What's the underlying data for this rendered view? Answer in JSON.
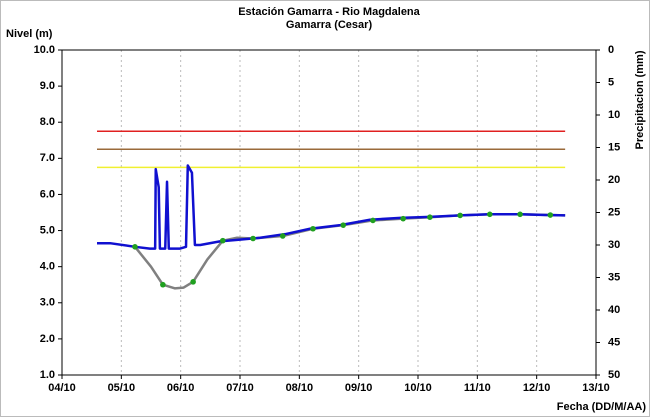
{
  "chart_data": {
    "type": "line",
    "title": "Estación Gamarra - Rio Magdalena",
    "subtitle": "Gamarra (Cesar)",
    "y_label": "Nivel (m)",
    "y2_label": "Precipitacion (mm)",
    "x_label": "Fecha (DD/M/AA)",
    "xlim": [
      4,
      13
    ],
    "xticks": [
      {
        "value": 4,
        "label": "04/10"
      },
      {
        "value": 5,
        "label": "05/10"
      },
      {
        "value": 6,
        "label": "06/10"
      },
      {
        "value": 7,
        "label": "07/10"
      },
      {
        "value": 8,
        "label": "08/10"
      },
      {
        "value": 9,
        "label": "09/10"
      },
      {
        "value": 10,
        "label": "10/10"
      },
      {
        "value": 11,
        "label": "11/10"
      },
      {
        "value": 12,
        "label": "12/10"
      },
      {
        "value": 13,
        "label": "13/10"
      }
    ],
    "ylim": [
      1,
      10
    ],
    "yticks": [
      {
        "value": 1,
        "label": "1.0"
      },
      {
        "value": 2,
        "label": "2.0"
      },
      {
        "value": 3,
        "label": "3.0"
      },
      {
        "value": 4,
        "label": "4.0"
      },
      {
        "value": 5,
        "label": "5.0"
      },
      {
        "value": 6,
        "label": "6.0"
      },
      {
        "value": 7,
        "label": "7.0"
      },
      {
        "value": 8,
        "label": "8.0"
      },
      {
        "value": 9,
        "label": "9.0"
      },
      {
        "value": 10,
        "label": "10.0"
      }
    ],
    "y2lim": [
      50,
      0
    ],
    "y2ticks": [
      0,
      5,
      10,
      15,
      20,
      25,
      30,
      35,
      40,
      45,
      50
    ],
    "grid": "x",
    "series": [
      {
        "color": "#e02020",
        "width": 1.5,
        "x": [
          4.59,
          12.48
        ],
        "values": [
          7.75,
          7.75
        ]
      },
      {
        "color": "#9a6a3a",
        "width": 1.5,
        "x": [
          4.59,
          12.48
        ],
        "values": [
          7.25,
          7.25
        ]
      },
      {
        "color": "#f0f030",
        "width": 1.5,
        "x": [
          4.59,
          12.48
        ],
        "values": [
          6.75,
          6.75
        ]
      },
      {
        "color": "#808080",
        "width": 2.5,
        "x": [
          5.23,
          5.5,
          5.7,
          5.9,
          6.05,
          6.21,
          6.45,
          6.71,
          6.95,
          7.22,
          7.72,
          8.23,
          8.74,
          9.24,
          9.75,
          10.2,
          10.71,
          11.21,
          11.72,
          12.23,
          12.48
        ],
        "values": [
          4.55,
          4.0,
          3.5,
          3.4,
          3.42,
          3.58,
          4.2,
          4.72,
          4.8,
          4.78,
          4.85,
          5.05,
          5.15,
          5.28,
          5.33,
          5.37,
          5.42,
          5.45,
          5.45,
          5.43,
          5.42
        ]
      },
      {
        "color": "#1010d0",
        "width": 2.5,
        "x": [
          4.59,
          4.81,
          5.23,
          5.48,
          5.57,
          5.58,
          5.63,
          5.65,
          5.74,
          5.77,
          5.8,
          5.9,
          5.99,
          6.09,
          6.12,
          6.19,
          6.24,
          6.33,
          6.66,
          7.0,
          7.34,
          7.76,
          8.18,
          8.69,
          9.19,
          9.7,
          10.2,
          10.71,
          11.21,
          11.72,
          12.14,
          12.48
        ],
        "values": [
          4.65,
          4.65,
          4.55,
          4.5,
          4.5,
          6.7,
          6.2,
          4.5,
          4.5,
          6.35,
          4.5,
          4.5,
          4.5,
          4.55,
          6.8,
          6.6,
          4.6,
          4.6,
          4.7,
          4.75,
          4.8,
          4.9,
          5.05,
          5.15,
          5.3,
          5.35,
          5.38,
          5.42,
          5.45,
          5.45,
          5.43,
          5.42
        ]
      },
      {
        "color": "#20a020",
        "style": "markers",
        "x": [
          5.23,
          5.7,
          6.21,
          6.71,
          7.22,
          7.72,
          8.23,
          8.74,
          9.24,
          9.75,
          10.2,
          10.71,
          11.21,
          11.72,
          12.23
        ],
        "values": [
          4.55,
          3.5,
          3.58,
          4.72,
          4.78,
          4.85,
          5.05,
          5.15,
          5.28,
          5.33,
          5.37,
          5.42,
          5.45,
          5.45,
          5.43
        ]
      }
    ]
  }
}
